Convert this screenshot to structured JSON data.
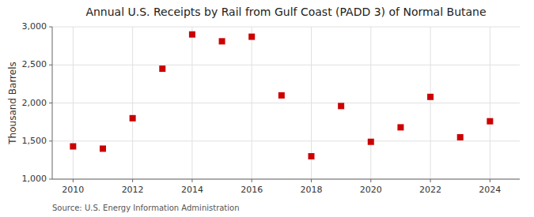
{
  "chart_data": {
    "type": "scatter",
    "title": "Annual U.S. Receipts by Rail from Gulf Coast (PADD 3) of Normal Butane",
    "y_label": "Thousand Barrels",
    "annotations": [
      "Source: U.S. Energy Information Administration"
    ],
    "x": [
      2010,
      2011,
      2012,
      2013,
      2014,
      2015,
      2016,
      2017,
      2018,
      2019,
      2020,
      2021,
      2022,
      2023,
      2024
    ],
    "values": [
      1430,
      1400,
      1800,
      2450,
      2900,
      2810,
      2870,
      2100,
      1300,
      1960,
      1490,
      1680,
      2080,
      1550,
      1760
    ],
    "color": "#cc0000",
    "marker": "square",
    "xlim": [
      2009.3,
      2025.0
    ],
    "xticks": [
      2010,
      2012,
      2014,
      2016,
      2018,
      2020,
      2022,
      2024
    ],
    "ylim": [
      1000,
      3000
    ],
    "yticks": [
      {
        "value": 1000,
        "label": "1,000"
      },
      {
        "value": 1500,
        "label": "1,500"
      },
      {
        "value": 2000,
        "label": "2,000"
      },
      {
        "value": 2500,
        "label": "2,500"
      },
      {
        "value": 3000,
        "label": "3,000"
      }
    ],
    "grid": true
  }
}
